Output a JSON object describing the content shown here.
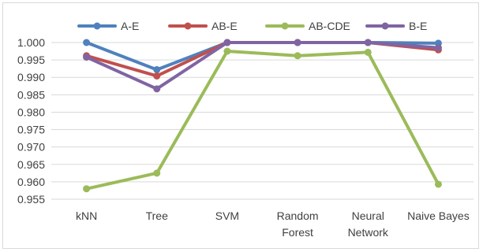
{
  "chart_data": {
    "type": "line",
    "title": "",
    "xlabel": "",
    "ylabel": "",
    "categories": [
      "kNN",
      "Tree",
      "SVM",
      "Random Forest",
      "Neural Network",
      "Naive Bayes"
    ],
    "category_lines": [
      [
        "kNN"
      ],
      [
        "Tree"
      ],
      [
        "SVM"
      ],
      [
        "Random",
        "Forest"
      ],
      [
        "Neural",
        "Network"
      ],
      [
        "Naive Bayes"
      ]
    ],
    "ylim": [
      0.955,
      1.0
    ],
    "yticks": [
      0.955,
      0.96,
      0.965,
      0.97,
      0.975,
      0.98,
      0.985,
      0.99,
      0.995,
      1.0
    ],
    "ytick_labels": [
      "0.955",
      "0.960",
      "0.965",
      "0.970",
      "0.975",
      "0.980",
      "0.985",
      "0.990",
      "0.995",
      "1.000"
    ],
    "grid": true,
    "legend_position": "top",
    "series": [
      {
        "name": "A-E",
        "color": "#4f81bd",
        "values": [
          1.0,
          0.9922,
          1.0,
          1.0,
          1.0,
          0.9998
        ]
      },
      {
        "name": "AB-E",
        "color": "#c0504d",
        "values": [
          0.9962,
          0.9904,
          1.0,
          1.0,
          1.0,
          0.9979
        ]
      },
      {
        "name": "AB-CDE",
        "color": "#9bbb59",
        "values": [
          0.958,
          0.9625,
          0.9975,
          0.9962,
          0.9972,
          0.9593
        ]
      },
      {
        "name": "B-E",
        "color": "#8064a2",
        "values": [
          0.9958,
          0.9867,
          1.0,
          1.0,
          1.0,
          0.9985
        ]
      }
    ]
  }
}
